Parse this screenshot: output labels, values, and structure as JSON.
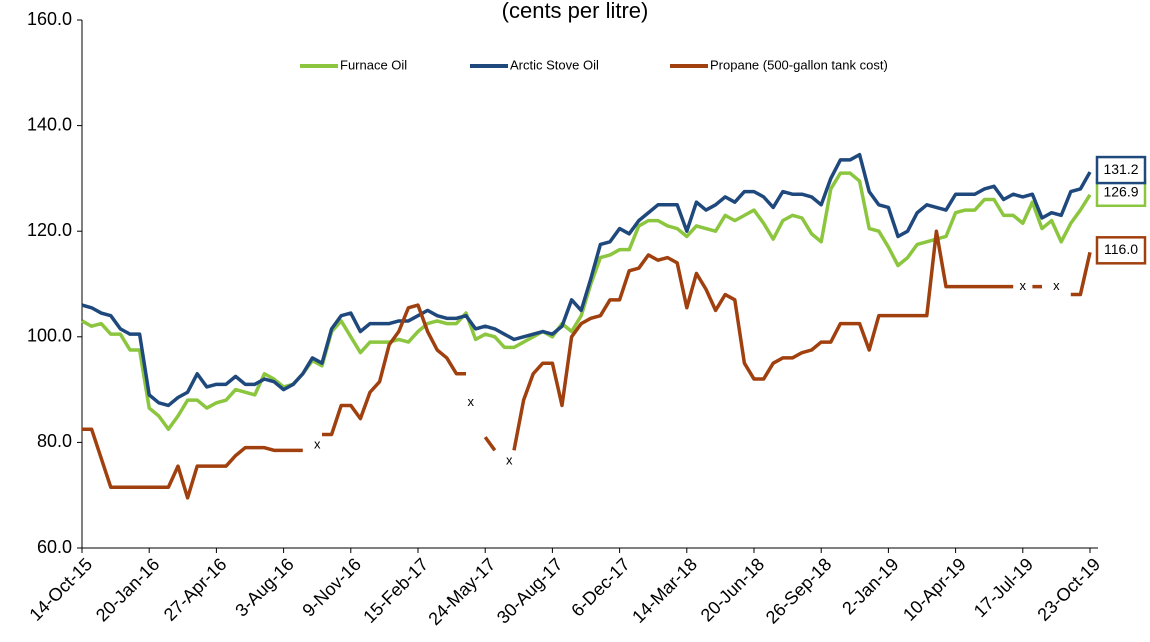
{
  "chart_data": {
    "type": "line",
    "subtitle": "(cents per litre)",
    "categories": [
      "14-Oct-15",
      null,
      null,
      null,
      null,
      null,
      null,
      "20-Jan-16",
      null,
      null,
      null,
      null,
      null,
      null,
      "27-Apr-16",
      null,
      null,
      null,
      null,
      null,
      null,
      "3-Aug-16",
      null,
      null,
      null,
      null,
      null,
      null,
      "9-Nov-16",
      null,
      null,
      null,
      null,
      null,
      null,
      "15-Feb-17",
      null,
      null,
      null,
      null,
      null,
      null,
      "24-May-17",
      null,
      null,
      null,
      null,
      null,
      null,
      "30-Aug-17",
      null,
      null,
      null,
      null,
      null,
      null,
      "6-Dec-17",
      null,
      null,
      null,
      null,
      null,
      null,
      "14-Mar-18",
      null,
      null,
      null,
      null,
      null,
      null,
      "20-Jun-18",
      null,
      null,
      null,
      null,
      null,
      null,
      "26-Sep-18",
      null,
      null,
      null,
      null,
      null,
      null,
      "2-Jan-19",
      null,
      null,
      null,
      null,
      null,
      null,
      "10-Apr-19",
      null,
      null,
      null,
      null,
      null,
      null,
      "17-Jul-19",
      null,
      null,
      null,
      null,
      null,
      null,
      "23-Oct-19"
    ],
    "series": [
      {
        "name": "Furnace Oil",
        "color": "#8cc63f",
        "values": [
          103,
          102,
          102.5,
          100.5,
          100.5,
          97.5,
          97.5,
          86.5,
          85,
          82.5,
          85,
          88,
          88,
          86.5,
          87.5,
          88,
          90,
          89.5,
          89,
          93,
          92,
          90.5,
          91,
          93,
          95.5,
          94.5,
          101,
          103,
          100,
          97,
          99,
          99,
          99,
          99.5,
          99,
          101,
          102.5,
          103,
          102.5,
          102.5,
          104.5,
          99.5,
          100.5,
          100,
          98,
          98,
          99,
          100,
          101,
          100,
          102.5,
          101,
          104,
          110,
          115,
          115.5,
          116.5,
          116.5,
          121,
          122,
          122,
          121,
          120.5,
          119,
          121,
          120.5,
          120,
          123,
          122,
          123,
          124,
          121.5,
          118.5,
          122,
          123,
          122.5,
          119.5,
          118,
          128,
          131,
          131,
          129.5,
          120.5,
          120,
          117,
          113.5,
          115,
          117.5,
          118,
          118.5,
          119,
          123.5,
          124,
          124,
          126,
          126,
          123,
          123,
          121.5,
          125.5,
          120.5,
          122,
          118,
          121.5,
          124,
          126.9
        ],
        "value_labels": {
          "105": "126.9"
        }
      },
      {
        "name": "Arctic Stove Oil",
        "color": "#1f497d",
        "values": [
          106,
          105.5,
          104.5,
          104,
          101.5,
          100.5,
          100.5,
          89,
          87.5,
          87,
          88.5,
          89.5,
          93,
          90.5,
          91,
          91,
          92.5,
          91,
          91,
          92,
          91.5,
          90,
          91,
          93,
          96,
          95,
          101.5,
          104,
          104.5,
          101,
          102.5,
          102.5,
          102.5,
          103,
          103,
          104,
          105,
          104,
          103.5,
          103.5,
          104,
          101.5,
          102,
          101.5,
          100.5,
          99.5,
          100,
          100.5,
          101,
          100.5,
          102,
          107,
          105,
          111,
          117.5,
          118,
          120.5,
          119.5,
          122,
          123.5,
          125,
          125,
          125,
          120,
          125.5,
          124,
          125,
          126.5,
          125.5,
          127.5,
          127.5,
          126.5,
          124.5,
          127.5,
          127,
          127,
          126.5,
          125,
          130,
          133.5,
          133.5,
          134.5,
          127.5,
          125,
          124.5,
          119,
          120,
          123.5,
          125,
          124.5,
          124,
          127,
          127,
          127,
          128,
          128.5,
          126,
          127,
          126.5,
          127,
          122.5,
          123.5,
          123,
          127.5,
          128,
          131.2
        ],
        "value_labels": {
          "105": "131.2"
        }
      },
      {
        "name": "Propane (500-gallon tank cost)",
        "color": "#a0400f",
        "values": [
          82.5,
          82.5,
          77,
          71.5,
          71.5,
          71.5,
          71.5,
          71.5,
          71.5,
          71.5,
          75.5,
          69.5,
          75.5,
          75.5,
          75.5,
          75.5,
          77.5,
          79,
          79,
          79,
          78.5,
          78.5,
          78.5,
          78.5,
          null,
          81.5,
          81.5,
          87,
          87,
          84.5,
          89.5,
          91.5,
          98.5,
          101,
          105.5,
          106,
          101,
          97.5,
          96,
          93,
          93,
          null,
          81,
          78.5,
          null,
          78.5,
          88,
          93,
          95,
          95,
          87,
          100,
          102.5,
          103.5,
          104,
          107,
          107,
          112.5,
          113,
          115.5,
          114.5,
          115,
          114,
          105.5,
          112,
          109,
          105,
          108,
          107,
          95,
          92,
          92,
          95,
          96,
          96,
          97,
          97.5,
          99,
          99,
          102.5,
          102.5,
          102.5,
          97.5,
          104,
          104,
          104,
          104,
          104,
          104,
          120,
          109.5,
          109.5,
          109.5,
          109.5,
          109.5,
          109.5,
          109.5,
          109.5,
          null,
          109.5,
          109.5,
          null,
          null,
          108,
          108,
          116
        ],
        "value_labels": {
          "105": "116.0"
        }
      }
    ],
    "annotations": [
      {
        "text": "x",
        "x": 24.5,
        "y": 79.5
      },
      {
        "text": "x",
        "x": 40.5,
        "y": 87.5
      },
      {
        "text": "x",
        "x": 44.5,
        "y": 76.5
      },
      {
        "text": "x",
        "x": 98,
        "y": 109.5
      },
      {
        "text": "x",
        "x": 101.5,
        "y": 109.5
      }
    ],
    "ylim": [
      60,
      160
    ],
    "yticks": [
      {
        "value": 60,
        "label": "60.0"
      },
      {
        "value": 80,
        "label": "80.0"
      },
      {
        "value": 100,
        "label": "100.0"
      },
      {
        "value": 120,
        "label": "120.0"
      },
      {
        "value": 140,
        "label": "140.0"
      },
      {
        "value": 160,
        "label": "160.0"
      }
    ],
    "grid": false,
    "legend": "top"
  }
}
